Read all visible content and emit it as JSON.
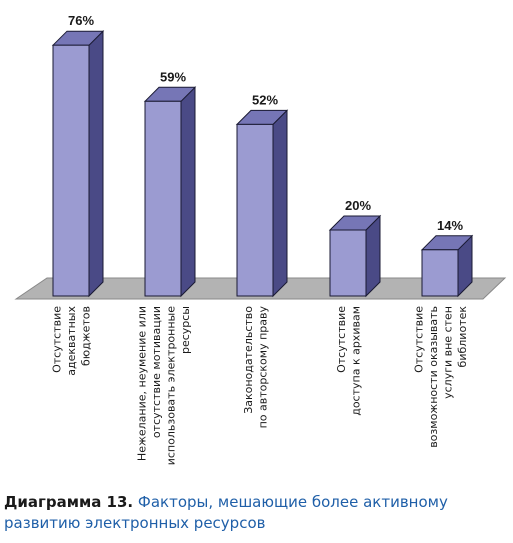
{
  "chart_data": {
    "type": "bar",
    "categories": [
      "Отсутствие адекватных бюджетов",
      "Нежелание, неумение или отсутствие мотивации использовать электронные ресурсы",
      "Законодательство по авторскому праву",
      "Отсутствие доступа к архивам",
      "Отсутствие возможности оказывать услуги вне стен библиотек"
    ],
    "category_lines": [
      [
        "Отсутствие",
        "адекватных",
        "бюджетов"
      ],
      [
        "Нежелание, неумение или",
        "отсутствие мотивации",
        "использовать электронные",
        "ресурсы"
      ],
      [
        "Законодательство",
        "по авторскому праву"
      ],
      [
        "Отсутствие",
        "доступа к архивам"
      ],
      [
        "Отсутствие",
        "возможности оказывать",
        "услуги вне стен",
        "библиотек"
      ]
    ],
    "values": [
      76,
      59,
      52,
      20,
      14
    ],
    "data_labels": [
      "76%",
      "59%",
      "52%",
      "20%",
      "14%"
    ],
    "ylim": [
      0,
      80
    ],
    "grid": false,
    "legend": "none",
    "colors": {
      "bar_front": "#9b9bd1",
      "bar_side": "#4a4a86",
      "bar_top": "#7676b6",
      "bar_edge": "#1a1a33",
      "floor": "#b3b3b3",
      "floor_edge": "#888888"
    }
  },
  "caption": {
    "lead": "Диаграмма 13.",
    "text": "Факторы, мешающие более активному развитию электронных ресурсов"
  }
}
